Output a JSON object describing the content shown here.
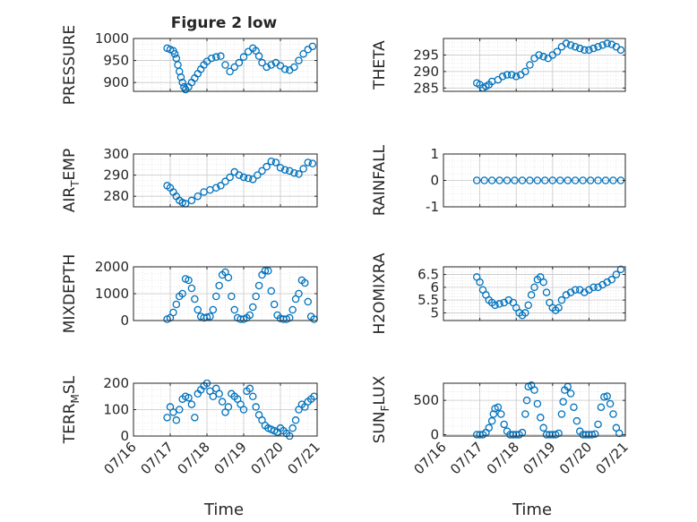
{
  "figure": {
    "title": "Figure 2 low",
    "marker_color": "#0072BD"
  },
  "chart_data": [
    {
      "type": "scatter",
      "ylabel": "PRESSURE",
      "xlim": [
        "07/16",
        "07/21"
      ],
      "ylim": [
        880,
        1000
      ],
      "yticks": [
        900,
        950,
        1000
      ],
      "xticks": [
        "07/16",
        "07/17",
        "07/18",
        "07/19",
        "07/20",
        "07/21"
      ],
      "x": [
        "07/16 22:00",
        "07/17 00:00",
        "07/17 02:00",
        "07/17 03:00",
        "07/17 04:00",
        "07/17 05:00",
        "07/17 06:00",
        "07/17 07:00",
        "07/17 08:00",
        "07/17 09:00",
        "07/17 10:00",
        "07/17 12:00",
        "07/17 14:00",
        "07/17 16:00",
        "07/17 18:00",
        "07/17 20:00",
        "07/17 22:00",
        "07/18 00:00",
        "07/18 03:00",
        "07/18 06:00",
        "07/18 09:00",
        "07/18 12:00",
        "07/18 15:00",
        "07/18 18:00",
        "07/18 21:00",
        "07/19 00:00",
        "07/19 03:00",
        "07/19 06:00",
        "07/19 08:00",
        "07/19 10:00",
        "07/19 12:00",
        "07/19 15:00",
        "07/19 18:00",
        "07/19 21:00",
        "07/20 00:00",
        "07/20 03:00",
        "07/20 06:00",
        "07/20 09:00",
        "07/20 12:00",
        "07/20 15:00",
        "07/20 18:00",
        "07/20 21:00"
      ],
      "y": [
        978,
        975,
        972,
        965,
        955,
        940,
        925,
        912,
        900,
        890,
        884,
        890,
        900,
        910,
        920,
        930,
        940,
        948,
        955,
        958,
        960,
        940,
        925,
        935,
        945,
        958,
        970,
        978,
        972,
        960,
        945,
        935,
        940,
        945,
        938,
        930,
        928,
        935,
        950,
        965,
        975,
        982
      ]
    },
    {
      "type": "scatter",
      "ylabel": "THETA",
      "xlim": [
        "07/16",
        "07/21"
      ],
      "ylim": [
        284,
        300
      ],
      "yticks": [
        285,
        290,
        295
      ],
      "xticks": [
        "07/16",
        "07/17",
        "07/18",
        "07/19",
        "07/20",
        "07/21"
      ],
      "x": [
        "07/16 22:00",
        "07/17 00:00",
        "07/17 02:00",
        "07/17 04:00",
        "07/17 06:00",
        "07/17 08:00",
        "07/17 12:00",
        "07/17 15:00",
        "07/17 18:00",
        "07/17 21:00",
        "07/18 00:00",
        "07/18 03:00",
        "07/18 06:00",
        "07/18 09:00",
        "07/18 12:00",
        "07/18 15:00",
        "07/18 18:00",
        "07/18 21:00",
        "07/19 00:00",
        "07/19 03:00",
        "07/19 06:00",
        "07/19 09:00",
        "07/19 12:00",
        "07/19 15:00",
        "07/19 18:00",
        "07/19 21:00",
        "07/20 00:00",
        "07/20 03:00",
        "07/20 06:00",
        "07/20 09:00",
        "07/20 12:00",
        "07/20 15:00",
        "07/20 18:00",
        "07/20 21:00"
      ],
      "y": [
        286.5,
        286,
        285,
        285.5,
        286,
        287,
        287.5,
        288.5,
        289,
        289,
        288.5,
        289,
        290,
        292,
        294,
        295,
        294.5,
        294,
        295,
        296,
        297.5,
        298.5,
        298,
        297.5,
        297,
        296.5,
        296.5,
        297,
        297.5,
        298,
        298.5,
        298.2,
        297.5,
        296.5
      ]
    },
    {
      "type": "scatter",
      "ylabel": "AIR_TEMP",
      "xlim": [
        "07/16",
        "07/21"
      ],
      "ylim": [
        275,
        300
      ],
      "yticks": [
        280,
        290,
        300
      ],
      "xticks": [
        "07/16",
        "07/17",
        "07/18",
        "07/19",
        "07/20",
        "07/21"
      ],
      "x": [
        "07/16 22:00",
        "07/17 00:00",
        "07/17 02:00",
        "07/17 04:00",
        "07/17 06:00",
        "07/17 08:00",
        "07/17 10:00",
        "07/17 14:00",
        "07/17 18:00",
        "07/17 22:00",
        "07/18 02:00",
        "07/18 06:00",
        "07/18 09:00",
        "07/18 12:00",
        "07/18 15:00",
        "07/18 18:00",
        "07/18 21:00",
        "07/19 00:00",
        "07/19 03:00",
        "07/19 06:00",
        "07/19 09:00",
        "07/19 12:00",
        "07/19 15:00",
        "07/19 18:00",
        "07/19 21:00",
        "07/20 00:00",
        "07/20 03:00",
        "07/20 06:00",
        "07/20 09:00",
        "07/20 12:00",
        "07/20 15:00",
        "07/20 18:00",
        "07/20 21:00"
      ],
      "y": [
        285,
        284,
        282,
        280,
        278,
        277,
        276.5,
        278,
        280,
        282,
        283,
        284,
        285,
        287,
        289,
        291.5,
        290,
        289,
        288.5,
        288,
        290,
        292,
        294,
        296.5,
        296,
        293.5,
        292.5,
        292,
        291,
        290.5,
        293,
        296,
        295.5
      ]
    },
    {
      "type": "scatter",
      "ylabel": "RAINFALL",
      "xlim": [
        "07/16",
        "07/21"
      ],
      "ylim": [
        -1,
        1
      ],
      "yticks": [
        -1,
        0,
        1
      ],
      "xticks": [
        "07/16",
        "07/17",
        "07/18",
        "07/19",
        "07/20",
        "07/21"
      ],
      "x": [
        "07/16 22:00",
        "07/17 03:00",
        "07/17 08:00",
        "07/17 13:00",
        "07/17 18:00",
        "07/17 23:00",
        "07/18 04:00",
        "07/18 09:00",
        "07/18 14:00",
        "07/18 19:00",
        "07/19 00:00",
        "07/19 05:00",
        "07/19 10:00",
        "07/19 15:00",
        "07/19 20:00",
        "07/20 01:00",
        "07/20 06:00",
        "07/20 11:00",
        "07/20 16:00",
        "07/20 21:00"
      ],
      "y": [
        0,
        0,
        0,
        0,
        0,
        0,
        0,
        0,
        0,
        0,
        0,
        0,
        0,
        0,
        0,
        0,
        0,
        0,
        0,
        0
      ]
    },
    {
      "type": "scatter",
      "ylabel": "MIXDEPTH",
      "xlim": [
        "07/16",
        "07/21"
      ],
      "ylim": [
        0,
        2000
      ],
      "yticks": [
        0,
        1000,
        2000
      ],
      "xticks": [
        "07/16",
        "07/17",
        "07/18",
        "07/19",
        "07/20",
        "07/21"
      ],
      "x": [
        "07/16 22:00",
        "07/17 00:00",
        "07/17 02:00",
        "07/17 04:00",
        "07/17 06:00",
        "07/17 08:00",
        "07/17 10:00",
        "07/17 12:00",
        "07/17 14:00",
        "07/17 16:00",
        "07/17 18:00",
        "07/17 20:00",
        "07/17 22:00",
        "07/18 00:00",
        "07/18 02:00",
        "07/18 04:00",
        "07/18 06:00",
        "07/18 08:00",
        "07/18 10:00",
        "07/18 12:00",
        "07/18 14:00",
        "07/18 16:00",
        "07/18 18:00",
        "07/18 20:00",
        "07/18 22:00",
        "07/19 00:00",
        "07/19 02:00",
        "07/19 04:00",
        "07/19 06:00",
        "07/19 08:00",
        "07/19 10:00",
        "07/19 12:00",
        "07/19 14:00",
        "07/19 16:00",
        "07/19 18:00",
        "07/19 20:00",
        "07/19 22:00",
        "07/20 00:00",
        "07/20 02:00",
        "07/20 04:00",
        "07/20 06:00",
        "07/20 08:00",
        "07/20 10:00",
        "07/20 12:00",
        "07/20 14:00",
        "07/20 16:00",
        "07/20 18:00",
        "07/20 20:00",
        "07/20 22:00"
      ],
      "y": [
        50,
        100,
        300,
        600,
        900,
        1000,
        1550,
        1500,
        1200,
        800,
        400,
        150,
        100,
        120,
        150,
        400,
        900,
        1300,
        1700,
        1800,
        1600,
        900,
        400,
        100,
        50,
        50,
        100,
        200,
        500,
        900,
        1300,
        1700,
        1850,
        1850,
        1100,
        600,
        200,
        80,
        50,
        50,
        100,
        400,
        800,
        1000,
        1500,
        1400,
        700,
        150,
        50
      ]
    },
    {
      "type": "scatter",
      "ylabel": "H2OMIXRA",
      "xlim": [
        "07/16",
        "07/21"
      ],
      "ylim": [
        4.7,
        6.8
      ],
      "yticks": [
        5,
        5.5,
        6,
        6.5
      ],
      "xticks": [
        "07/16",
        "07/17",
        "07/18",
        "07/19",
        "07/20",
        "07/21"
      ],
      "x": [
        "07/16 22:00",
        "07/17 00:00",
        "07/17 02:00",
        "07/17 04:00",
        "07/17 06:00",
        "07/17 08:00",
        "07/17 10:00",
        "07/17 13:00",
        "07/17 16:00",
        "07/17 19:00",
        "07/17 22:00",
        "07/18 00:00",
        "07/18 02:00",
        "07/18 04:00",
        "07/18 06:00",
        "07/18 08:00",
        "07/18 10:00",
        "07/18 12:00",
        "07/18 14:00",
        "07/18 16:00",
        "07/18 18:00",
        "07/18 20:00",
        "07/18 22:00",
        "07/19 00:00",
        "07/19 02:00",
        "07/19 04:00",
        "07/19 06:00",
        "07/19 09:00",
        "07/19 12:00",
        "07/19 15:00",
        "07/19 18:00",
        "07/19 21:00",
        "07/20 00:00",
        "07/20 03:00",
        "07/20 06:00",
        "07/20 09:00",
        "07/20 12:00",
        "07/20 15:00",
        "07/20 18:00",
        "07/20 21:00"
      ],
      "y": [
        6.4,
        6.2,
        5.9,
        5.7,
        5.5,
        5.4,
        5.3,
        5.35,
        5.4,
        5.5,
        5.4,
        5.2,
        5.0,
        4.9,
        5.0,
        5.3,
        5.7,
        6.0,
        6.3,
        6.4,
        6.2,
        5.8,
        5.4,
        5.2,
        5.1,
        5.2,
        5.5,
        5.7,
        5.8,
        5.9,
        5.9,
        5.8,
        5.9,
        6.0,
        6.0,
        6.1,
        6.2,
        6.3,
        6.5,
        6.7
      ]
    },
    {
      "type": "scatter",
      "ylabel": "TERR_MSL",
      "xlim": [
        "07/16",
        "07/21"
      ],
      "ylim": [
        0,
        200
      ],
      "yticks": [
        0,
        100,
        200
      ],
      "xticks": [
        "07/16",
        "07/17",
        "07/18",
        "07/19",
        "07/20",
        "07/21"
      ],
      "x": [
        "07/16 22:00",
        "07/17 00:00",
        "07/17 02:00",
        "07/17 04:00",
        "07/17 06:00",
        "07/17 08:00",
        "07/17 10:00",
        "07/17 12:00",
        "07/17 14:00",
        "07/17 16:00",
        "07/17 18:00",
        "07/17 20:00",
        "07/17 22:00",
        "07/18 00:00",
        "07/18 02:00",
        "07/18 04:00",
        "07/18 06:00",
        "07/18 08:00",
        "07/18 10:00",
        "07/18 12:00",
        "07/18 14:00",
        "07/18 16:00",
        "07/18 18:00",
        "07/18 20:00",
        "07/18 22:00",
        "07/19 00:00",
        "07/19 02:00",
        "07/19 04:00",
        "07/19 06:00",
        "07/19 08:00",
        "07/19 10:00",
        "07/19 12:00",
        "07/19 14:00",
        "07/19 16:00",
        "07/19 18:00",
        "07/19 20:00",
        "07/19 22:00",
        "07/20 00:00",
        "07/20 02:00",
        "07/20 04:00",
        "07/20 06:00",
        "07/20 08:00",
        "07/20 10:00",
        "07/20 12:00",
        "07/20 14:00",
        "07/20 16:00",
        "07/20 18:00",
        "07/20 20:00",
        "07/20 22:00"
      ],
      "y": [
        70,
        110,
        90,
        60,
        100,
        140,
        150,
        145,
        120,
        70,
        160,
        175,
        190,
        200,
        170,
        150,
        180,
        160,
        130,
        90,
        110,
        160,
        150,
        140,
        120,
        100,
        170,
        180,
        150,
        110,
        80,
        60,
        40,
        30,
        25,
        20,
        15,
        30,
        20,
        10,
        0,
        30,
        60,
        100,
        120,
        110,
        130,
        140,
        150
      ]
    },
    {
      "type": "scatter",
      "ylabel": "SUN_FLUX",
      "xlim": [
        "07/16",
        "07/21"
      ],
      "ylim": [
        -20,
        750
      ],
      "yticks": [
        0,
        500
      ],
      "xticks": [
        "07/16",
        "07/17",
        "07/18",
        "07/19",
        "07/20",
        "07/21"
      ],
      "x": [
        "07/16 22:00",
        "07/17 00:00",
        "07/17 02:00",
        "07/17 04:00",
        "07/17 06:00",
        "07/17 08:00",
        "07/17 09:00",
        "07/17 10:00",
        "07/17 12:00",
        "07/17 14:00",
        "07/17 16:00",
        "07/17 18:00",
        "07/17 20:00",
        "07/17 22:00",
        "07/18 00:00",
        "07/18 02:00",
        "07/18 04:00",
        "07/18 06:00",
        "07/18 07:00",
        "07/18 08:00",
        "07/18 10:00",
        "07/18 12:00",
        "07/18 14:00",
        "07/18 16:00",
        "07/18 18:00",
        "07/18 20:00",
        "07/18 22:00",
        "07/19 00:00",
        "07/19 02:00",
        "07/19 04:00",
        "07/19 06:00",
        "07/19 07:00",
        "07/19 08:00",
        "07/19 10:00",
        "07/19 12:00",
        "07/19 14:00",
        "07/19 16:00",
        "07/19 18:00",
        "07/19 20:00",
        "07/19 22:00",
        "07/20 00:00",
        "07/20 02:00",
        "07/20 04:00",
        "07/20 06:00",
        "07/20 08:00",
        "07/20 10:00",
        "07/20 12:00",
        "07/20 14:00",
        "07/20 16:00",
        "07/20 18:00",
        "07/20 20:00"
      ],
      "y": [
        0,
        0,
        0,
        30,
        100,
        200,
        300,
        380,
        400,
        300,
        150,
        50,
        0,
        0,
        0,
        0,
        30,
        300,
        500,
        700,
        720,
        650,
        450,
        250,
        100,
        0,
        0,
        0,
        0,
        20,
        300,
        480,
        650,
        700,
        600,
        400,
        200,
        50,
        0,
        0,
        0,
        0,
        10,
        150,
        400,
        550,
        560,
        450,
        300,
        100,
        20
      ]
    }
  ],
  "xlabels": [
    "Time",
    "Time"
  ]
}
